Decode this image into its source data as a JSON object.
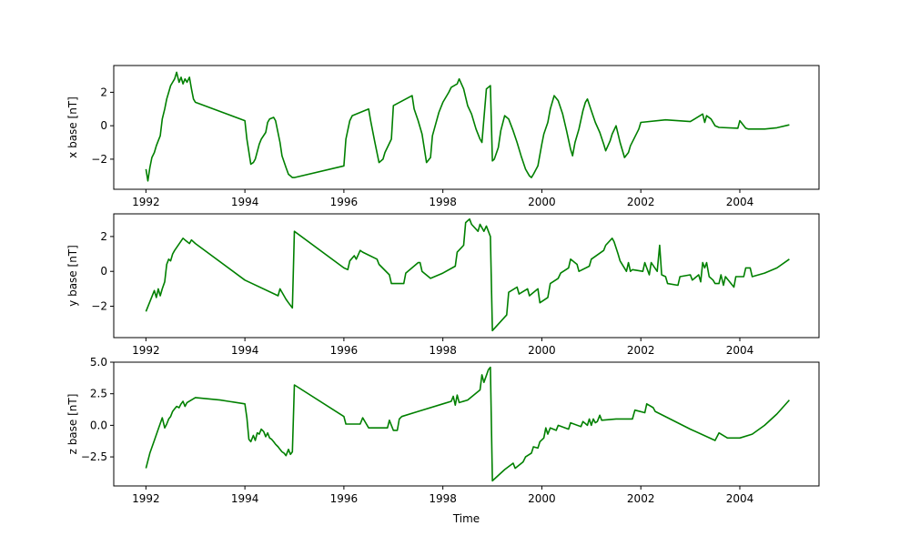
{
  "chart_data": [
    {
      "type": "line",
      "xlabel": "",
      "ylabel": "x base [nT]",
      "xlim": [
        1991.35,
        2005.6
      ],
      "ylim": [
        -3.8,
        3.6
      ],
      "xticks": [
        1992,
        1994,
        1996,
        1998,
        2000,
        2002,
        2004
      ],
      "xtick_labels": [
        "1992",
        "1994",
        "1996",
        "1998",
        "2000",
        "2002",
        "2004"
      ],
      "yticks": [
        -2,
        0,
        2
      ],
      "ytick_labels": [
        "−2",
        "0",
        "2"
      ],
      "grid": false,
      "series": [
        {
          "color": "#008000",
          "x": [
            1992.0,
            1992.04,
            1992.08,
            1992.12,
            1992.17,
            1992.21,
            1992.25,
            1992.29,
            1992.33,
            1992.38,
            1992.42,
            1992.46,
            1992.5,
            1992.54,
            1992.58,
            1992.62,
            1992.67,
            1992.71,
            1992.75,
            1992.79,
            1992.83,
            1992.88,
            1992.92,
            1992.96,
            1993.0,
            1994.0,
            1994.04,
            1994.12,
            1994.17,
            1994.21,
            1994.29,
            1994.33,
            1994.42,
            1994.46,
            1994.5,
            1994.58,
            1994.62,
            1994.71,
            1994.75,
            1994.83,
            1994.88,
            1994.92,
            1994.96,
            1995.0,
            1996.0,
            1996.04,
            1996.12,
            1996.17,
            1996.5,
            1996.54,
            1996.62,
            1996.71,
            1996.79,
            1996.83,
            1996.96,
            1997.0,
            1997.38,
            1997.42,
            1997.5,
            1997.58,
            1997.67,
            1997.75,
            1997.79,
            1997.92,
            1998.0,
            1998.12,
            1998.17,
            1998.29,
            1998.33,
            1998.42,
            1998.5,
            1998.58,
            1998.67,
            1998.75,
            1998.79,
            1998.88,
            1998.96,
            1999.0,
            1999.04,
            1999.12,
            1999.17,
            1999.25,
            1999.33,
            1999.42,
            1999.5,
            1999.58,
            1999.67,
            1999.75,
            1999.79,
            1999.83,
            1999.92,
            2000.0,
            2000.04,
            2000.12,
            2000.17,
            2000.25,
            2000.33,
            2000.42,
            2000.5,
            2000.58,
            2000.62,
            2000.67,
            2000.75,
            2000.83,
            2000.88,
            2000.92,
            2001.0,
            2001.08,
            2001.17,
            2001.25,
            2001.29,
            2001.38,
            2001.42,
            2001.5,
            2001.58,
            2001.67,
            2001.75,
            2001.79,
            2001.96,
            2002.0,
            2002.5,
            2003.0,
            2003.25,
            2003.29,
            2003.33,
            2003.42,
            2003.5,
            2003.54,
            2003.58,
            2003.96,
            2004.0,
            2004.12,
            2004.17,
            2004.5,
            2004.75,
            2005.0
          ],
          "values": [
            -2.6,
            -3.3,
            -2.5,
            -1.9,
            -1.6,
            -1.2,
            -0.9,
            -0.6,
            0.4,
            1.0,
            1.6,
            2.0,
            2.4,
            2.6,
            2.8,
            3.2,
            2.6,
            2.9,
            2.5,
            2.8,
            2.6,
            2.9,
            2.2,
            1.6,
            1.4,
            0.3,
            -0.8,
            -2.3,
            -2.2,
            -2.0,
            -1.1,
            -0.8,
            -0.4,
            0.2,
            0.4,
            0.5,
            0.3,
            -1.0,
            -1.8,
            -2.5,
            -2.9,
            -3.0,
            -3.1,
            -3.1,
            -2.4,
            -0.8,
            0.3,
            0.6,
            1.0,
            0.3,
            -0.9,
            -2.2,
            -2.0,
            -1.6,
            -0.8,
            1.2,
            1.8,
            1.0,
            0.3,
            -0.5,
            -2.2,
            -1.9,
            -0.6,
            0.8,
            1.4,
            2.0,
            2.3,
            2.5,
            2.8,
            2.2,
            1.2,
            0.7,
            -0.2,
            -0.8,
            -1.0,
            2.2,
            2.4,
            -2.1,
            -2.0,
            -1.3,
            -0.3,
            0.6,
            0.4,
            -0.3,
            -1.0,
            -1.8,
            -2.6,
            -3.0,
            -3.1,
            -2.9,
            -2.4,
            -1.1,
            -0.5,
            0.2,
            1.0,
            1.8,
            1.5,
            0.7,
            -0.3,
            -1.4,
            -1.8,
            -1.0,
            -0.2,
            0.9,
            1.4,
            1.6,
            0.9,
            0.2,
            -0.4,
            -1.1,
            -1.5,
            -0.9,
            -0.5,
            0.0,
            -1.0,
            -1.9,
            -1.6,
            -1.2,
            -0.2,
            0.2,
            0.35,
            0.25,
            0.7,
            0.2,
            0.6,
            0.4,
            0.0,
            -0.05,
            -0.1,
            -0.15,
            0.3,
            -0.15,
            -0.2,
            -0.2,
            -0.12,
            0.05
          ]
        }
      ]
    },
    {
      "type": "line",
      "xlabel": "",
      "ylabel": "y base [nT]",
      "xlim": [
        1991.35,
        2005.6
      ],
      "ylim": [
        -3.8,
        3.3
      ],
      "xticks": [
        1992,
        1994,
        1996,
        1998,
        2000,
        2002,
        2004
      ],
      "xtick_labels": [
        "1992",
        "1994",
        "1996",
        "1998",
        "2000",
        "2002",
        "2004"
      ],
      "yticks": [
        -2,
        0,
        2
      ],
      "ytick_labels": [
        "−2",
        "0",
        "2"
      ],
      "grid": false,
      "series": [
        {
          "color": "#008000",
          "x": [
            1992.0,
            1992.17,
            1992.21,
            1992.25,
            1992.29,
            1992.33,
            1992.38,
            1992.42,
            1992.46,
            1992.5,
            1992.54,
            1992.58,
            1992.75,
            1992.79,
            1992.88,
            1992.92,
            1993.0,
            1994.0,
            1994.67,
            1994.71,
            1994.83,
            1994.88,
            1994.96,
            1995.0,
            1996.0,
            1996.08,
            1996.12,
            1996.21,
            1996.25,
            1996.33,
            1996.38,
            1996.67,
            1996.71,
            1996.92,
            1996.96,
            1997.21,
            1997.25,
            1997.5,
            1997.54,
            1997.58,
            1997.75,
            1998.0,
            1998.25,
            1998.29,
            1998.42,
            1998.46,
            1998.54,
            1998.58,
            1998.71,
            1998.75,
            1998.83,
            1998.88,
            1998.92,
            1998.96,
            1999.0,
            1999.29,
            1999.33,
            1999.5,
            1999.54,
            1999.71,
            1999.75,
            1999.92,
            1999.96,
            2000.12,
            2000.17,
            2000.33,
            2000.38,
            2000.54,
            2000.58,
            2000.71,
            2000.75,
            2000.96,
            2001.0,
            2001.25,
            2001.29,
            2001.42,
            2001.46,
            2001.54,
            2001.58,
            2001.71,
            2001.75,
            2001.79,
            2001.83,
            2002.04,
            2002.08,
            2002.17,
            2002.21,
            2002.33,
            2002.38,
            2002.42,
            2002.5,
            2002.54,
            2002.75,
            2002.79,
            2003.0,
            2003.04,
            2003.17,
            2003.21,
            2003.25,
            2003.29,
            2003.33,
            2003.38,
            2003.46,
            2003.5,
            2003.58,
            2003.62,
            2003.67,
            2003.71,
            2003.88,
            2003.92,
            2004.08,
            2004.12,
            2004.21,
            2004.25,
            2004.5,
            2004.75,
            2005.0
          ],
          "values": [
            -2.3,
            -1.1,
            -1.5,
            -1.0,
            -1.4,
            -1.0,
            -0.6,
            0.4,
            0.7,
            0.6,
            1.0,
            1.2,
            1.9,
            1.8,
            1.6,
            1.8,
            1.6,
            -0.5,
            -1.4,
            -1.0,
            -1.6,
            -1.8,
            -2.1,
            2.3,
            0.2,
            0.1,
            0.6,
            0.9,
            0.7,
            1.2,
            1.1,
            0.7,
            0.4,
            -0.2,
            -0.7,
            -0.7,
            -0.1,
            0.5,
            0.5,
            0.0,
            -0.4,
            -0.1,
            0.3,
            1.1,
            1.5,
            2.8,
            3.0,
            2.7,
            2.3,
            2.7,
            2.3,
            2.6,
            2.3,
            2.0,
            -3.4,
            -2.5,
            -1.2,
            -0.9,
            -1.3,
            -1.0,
            -1.4,
            -1.0,
            -1.8,
            -1.5,
            -0.7,
            -0.4,
            -0.1,
            0.2,
            0.7,
            0.4,
            0.0,
            0.3,
            0.7,
            1.2,
            1.5,
            1.9,
            1.7,
            1.0,
            0.6,
            0.0,
            0.5,
            0.0,
            0.1,
            0.0,
            0.5,
            -0.2,
            0.5,
            0.0,
            1.5,
            -0.2,
            -0.3,
            -0.7,
            -0.8,
            -0.3,
            -0.2,
            -0.5,
            -0.2,
            -0.6,
            0.5,
            0.2,
            0.5,
            -0.3,
            -0.5,
            -0.7,
            -0.7,
            -0.2,
            -0.8,
            -0.3,
            -0.9,
            -0.3,
            -0.3,
            0.2,
            0.2,
            -0.3,
            -0.1,
            0.2,
            0.7
          ]
        }
      ]
    },
    {
      "type": "line",
      "xlabel": "Time",
      "ylabel": "z base [nT]",
      "xlim": [
        1991.35,
        2005.6
      ],
      "ylim": [
        -4.8,
        5.0
      ],
      "xticks": [
        1992,
        1994,
        1996,
        1998,
        2000,
        2002,
        2004
      ],
      "xtick_labels": [
        "1992",
        "1994",
        "1996",
        "1998",
        "2000",
        "2002",
        "2004"
      ],
      "yticks": [
        -2.5,
        0.0,
        2.5,
        5.0
      ],
      "ytick_labels": [
        "−2.5",
        "0.0",
        "2.5",
        "5.0"
      ],
      "grid": false,
      "series": [
        {
          "color": "#008000",
          "x": [
            1992.0,
            1992.08,
            1992.17,
            1992.25,
            1992.33,
            1992.38,
            1992.42,
            1992.46,
            1992.5,
            1992.54,
            1992.58,
            1992.62,
            1992.67,
            1992.71,
            1992.75,
            1992.79,
            1992.83,
            1993.0,
            1993.5,
            1994.0,
            1994.04,
            1994.08,
            1994.12,
            1994.17,
            1994.21,
            1994.25,
            1994.29,
            1994.33,
            1994.38,
            1994.42,
            1994.46,
            1994.5,
            1994.54,
            1994.58,
            1994.62,
            1994.67,
            1994.71,
            1994.75,
            1994.79,
            1994.83,
            1994.88,
            1994.92,
            1994.96,
            1995.0,
            1996.0,
            1996.04,
            1996.33,
            1996.38,
            1996.5,
            1996.88,
            1996.92,
            1996.96,
            1997.0,
            1997.08,
            1997.12,
            1997.17,
            1997.5,
            1998.0,
            1998.17,
            1998.21,
            1998.25,
            1998.29,
            1998.33,
            1998.5,
            1998.75,
            1998.79,
            1998.83,
            1998.92,
            1998.96,
            1999.0,
            1999.25,
            1999.42,
            1999.46,
            1999.62,
            1999.67,
            1999.79,
            1999.83,
            1999.92,
            1999.96,
            2000.04,
            2000.08,
            2000.12,
            2000.17,
            2000.29,
            2000.33,
            2000.54,
            2000.58,
            2000.79,
            2000.83,
            2000.92,
            2000.96,
            2001.0,
            2001.04,
            2001.08,
            2001.12,
            2001.17,
            2001.21,
            2001.5,
            2001.83,
            2001.88,
            2002.08,
            2002.12,
            2002.25,
            2002.29,
            2003.0,
            2003.5,
            2003.58,
            2003.75,
            2004.0,
            2004.25,
            2004.5,
            2004.75,
            2005.0
          ],
          "values": [
            -3.4,
            -2.2,
            -1.2,
            -0.3,
            0.6,
            -0.2,
            0.1,
            0.5,
            0.7,
            1.1,
            1.3,
            1.5,
            1.4,
            1.7,
            1.9,
            1.5,
            1.8,
            2.2,
            2.0,
            1.7,
            0.6,
            -1.1,
            -1.3,
            -0.8,
            -1.2,
            -0.6,
            -0.7,
            -0.3,
            -0.5,
            -0.9,
            -0.6,
            -1.0,
            -1.1,
            -1.3,
            -1.5,
            -1.7,
            -1.9,
            -2.1,
            -2.2,
            -2.4,
            -1.9,
            -2.3,
            -2.1,
            3.2,
            0.7,
            0.1,
            0.1,
            0.6,
            -0.2,
            -0.2,
            0.4,
            0.0,
            -0.4,
            -0.4,
            0.5,
            0.7,
            1.1,
            1.7,
            1.9,
            2.3,
            1.6,
            2.4,
            1.8,
            2.0,
            2.8,
            4.0,
            3.4,
            4.4,
            4.6,
            -4.4,
            -3.5,
            -3.0,
            -3.4,
            -2.9,
            -2.5,
            -2.2,
            -1.7,
            -1.8,
            -1.3,
            -1.0,
            -0.2,
            -0.7,
            -0.2,
            -0.4,
            0.0,
            -0.3,
            0.2,
            -0.1,
            0.3,
            0.0,
            0.5,
            0.0,
            0.5,
            0.2,
            0.3,
            0.8,
            0.4,
            0.5,
            0.5,
            1.2,
            1.0,
            1.7,
            1.4,
            1.1,
            -0.3,
            -1.2,
            -0.6,
            -1.0,
            -1.0,
            -0.7,
            0.0,
            0.9,
            2.0
          ]
        }
      ]
    }
  ]
}
